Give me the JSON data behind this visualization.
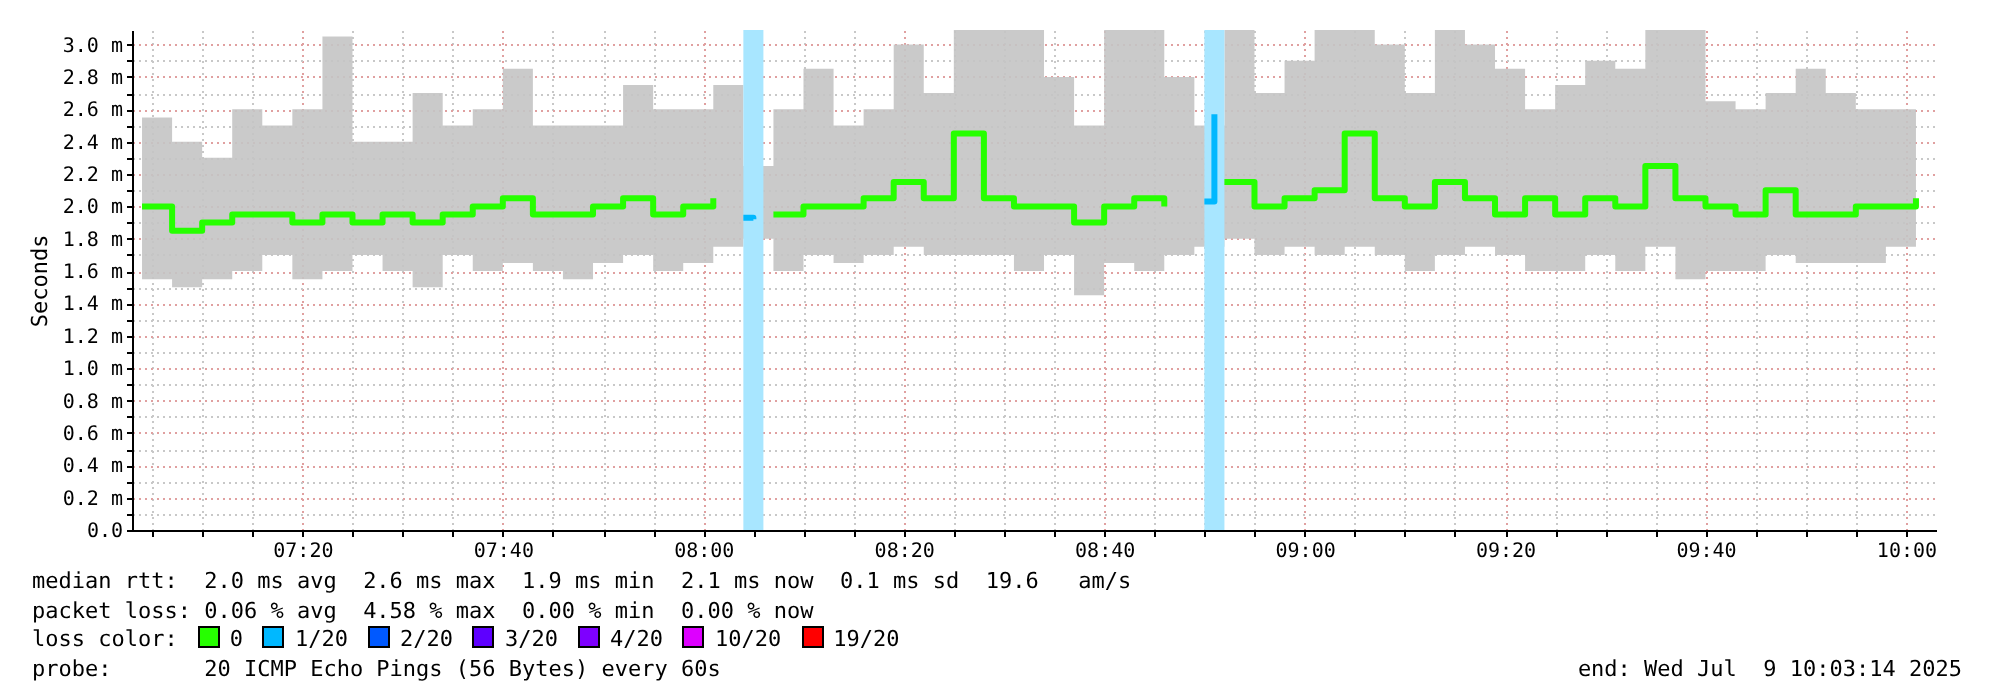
{
  "chart_data": {
    "type": "step",
    "ylabel": "Seconds",
    "legend_title": "loss color:",
    "legend": "bottom",
    "grid": true,
    "xlim": [
      "2025-07-09T07:03",
      "2025-07-09T10:03"
    ],
    "xticks": [
      {
        "value": "2025-07-09T07:05",
        "label": null
      },
      {
        "value": "2025-07-09T07:10",
        "label": null
      },
      {
        "value": "2025-07-09T07:15",
        "label": null
      },
      {
        "value": "2025-07-09T07:20",
        "label": "07:20"
      },
      {
        "value": "2025-07-09T07:25",
        "label": null
      },
      {
        "value": "2025-07-09T07:30",
        "label": null
      },
      {
        "value": "2025-07-09T07:35",
        "label": null
      },
      {
        "value": "2025-07-09T07:40",
        "label": "07:40"
      },
      {
        "value": "2025-07-09T07:45",
        "label": null
      },
      {
        "value": "2025-07-09T07:50",
        "label": null
      },
      {
        "value": "2025-07-09T07:55",
        "label": null
      },
      {
        "value": "2025-07-09T08:00",
        "label": "08:00"
      },
      {
        "value": "2025-07-09T08:05",
        "label": null
      },
      {
        "value": "2025-07-09T08:10",
        "label": null
      },
      {
        "value": "2025-07-09T08:15",
        "label": null
      },
      {
        "value": "2025-07-09T08:20",
        "label": "08:20"
      },
      {
        "value": "2025-07-09T08:25",
        "label": null
      },
      {
        "value": "2025-07-09T08:30",
        "label": null
      },
      {
        "value": "2025-07-09T08:35",
        "label": null
      },
      {
        "value": "2025-07-09T08:40",
        "label": "08:40"
      },
      {
        "value": "2025-07-09T08:45",
        "label": null
      },
      {
        "value": "2025-07-09T08:50",
        "label": null
      },
      {
        "value": "2025-07-09T08:55",
        "label": null
      },
      {
        "value": "2025-07-09T09:00",
        "label": "09:00"
      },
      {
        "value": "2025-07-09T09:05",
        "label": null
      },
      {
        "value": "2025-07-09T09:10",
        "label": null
      },
      {
        "value": "2025-07-09T09:15",
        "label": null
      },
      {
        "value": "2025-07-09T09:20",
        "label": "09:20"
      },
      {
        "value": "2025-07-09T09:25",
        "label": null
      },
      {
        "value": "2025-07-09T09:30",
        "label": null
      },
      {
        "value": "2025-07-09T09:35",
        "label": null
      },
      {
        "value": "2025-07-09T09:40",
        "label": "09:40"
      },
      {
        "value": "2025-07-09T09:45",
        "label": null
      },
      {
        "value": "2025-07-09T09:50",
        "label": null
      },
      {
        "value": "2025-07-09T09:55",
        "label": null
      },
      {
        "value": "2025-07-09T10:00",
        "label": "10:00"
      }
    ],
    "ylim": [
      0,
      3.09
    ],
    "yticks": [
      {
        "value": 0,
        "label": "0.0"
      },
      {
        "value": 0.1,
        "label": null
      },
      {
        "value": 0.2,
        "label": "0.2 m"
      },
      {
        "value": 0.3,
        "label": null
      },
      {
        "value": 0.4,
        "label": "0.4 m"
      },
      {
        "value": 0.5,
        "label": null
      },
      {
        "value": 0.6,
        "label": "0.6 m"
      },
      {
        "value": 0.7,
        "label": null
      },
      {
        "value": 0.8,
        "label": "0.8 m"
      },
      {
        "value": 0.9,
        "label": null
      },
      {
        "value": 1.0,
        "label": "1.0 m"
      },
      {
        "value": 1.1,
        "label": null
      },
      {
        "value": 1.2,
        "label": "1.2 m"
      },
      {
        "value": 1.3,
        "label": null
      },
      {
        "value": 1.4,
        "label": "1.4 m"
      },
      {
        "value": 1.5,
        "label": null
      },
      {
        "value": 1.6,
        "label": "1.6 m"
      },
      {
        "value": 1.7,
        "label": null
      },
      {
        "value": 1.8,
        "label": "1.8 m"
      },
      {
        "value": 1.9,
        "label": null
      },
      {
        "value": 2.0,
        "label": "2.0 m"
      },
      {
        "value": 2.1,
        "label": null
      },
      {
        "value": 2.2,
        "label": "2.2 m"
      },
      {
        "value": 2.3,
        "label": null
      },
      {
        "value": 2.4,
        "label": "2.4 m"
      },
      {
        "value": 2.5,
        "label": null
      },
      {
        "value": 2.6,
        "label": "2.6 m"
      },
      {
        "value": 2.7,
        "label": null
      },
      {
        "value": 2.8,
        "label": "2.8 m"
      },
      {
        "value": 2.9,
        "label": null
      },
      {
        "value": 3.0,
        "label": "3.0 m"
      }
    ],
    "x": [
      "2025-07-09T07:04",
      "2025-07-09T07:07",
      "2025-07-09T07:10",
      "2025-07-09T07:13",
      "2025-07-09T07:16",
      "2025-07-09T07:19",
      "2025-07-09T07:22",
      "2025-07-09T07:25",
      "2025-07-09T07:28",
      "2025-07-09T07:31",
      "2025-07-09T07:34",
      "2025-07-09T07:37",
      "2025-07-09T07:40",
      "2025-07-09T07:43",
      "2025-07-09T07:46",
      "2025-07-09T07:49",
      "2025-07-09T07:52",
      "2025-07-09T07:55",
      "2025-07-09T07:58",
      "2025-07-09T08:01",
      "2025-07-09T08:04",
      "2025-07-09T08:07",
      "2025-07-09T08:10",
      "2025-07-09T08:13",
      "2025-07-09T08:16",
      "2025-07-09T08:19",
      "2025-07-09T08:22",
      "2025-07-09T08:25",
      "2025-07-09T08:28",
      "2025-07-09T08:31",
      "2025-07-09T08:34",
      "2025-07-09T08:37",
      "2025-07-09T08:40",
      "2025-07-09T08:43",
      "2025-07-09T08:46",
      "2025-07-09T08:49",
      "2025-07-09T08:52",
      "2025-07-09T08:55",
      "2025-07-09T08:58",
      "2025-07-09T09:01",
      "2025-07-09T09:04",
      "2025-07-09T09:07",
      "2025-07-09T09:10",
      "2025-07-09T09:13",
      "2025-07-09T09:16",
      "2025-07-09T09:19",
      "2025-07-09T09:22",
      "2025-07-09T09:25",
      "2025-07-09T09:28",
      "2025-07-09T09:31",
      "2025-07-09T09:34",
      "2025-07-09T09:37",
      "2025-07-09T09:40",
      "2025-07-09T09:43",
      "2025-07-09T09:46",
      "2025-07-09T09:49",
      "2025-07-09T09:52",
      "2025-07-09T09:55",
      "2025-07-09T09:58",
      "2025-07-09T10:01"
    ],
    "series": [
      {
        "name": "0",
        "color": "#26ff00",
        "values": [
          2.0,
          1.85,
          1.9,
          1.95,
          1.95,
          1.9,
          1.95,
          1.9,
          1.95,
          1.9,
          1.95,
          2.0,
          2.05,
          1.95,
          1.95,
          2.0,
          2.05,
          1.95,
          2.0,
          2.05,
          null,
          1.95,
          2.0,
          2.0,
          2.05,
          2.15,
          2.05,
          2.45,
          2.05,
          2.0,
          2.0,
          1.9,
          2.0,
          2.05,
          2.0,
          null,
          2.15,
          2.0,
          2.05,
          2.1,
          2.45,
          2.05,
          2.0,
          2.15,
          2.05,
          1.95,
          2.05,
          1.95,
          2.05,
          2.0,
          2.25,
          2.05,
          2.0,
          1.95,
          2.1,
          1.95,
          1.95,
          2.0,
          2.0,
          2.05
        ],
        "lower": [
          1.55,
          1.5,
          1.55,
          1.6,
          1.7,
          1.55,
          1.6,
          1.7,
          1.6,
          1.5,
          1.7,
          1.6,
          1.65,
          1.6,
          1.55,
          1.65,
          1.7,
          1.6,
          1.65,
          1.75,
          1.8,
          1.6,
          1.7,
          1.65,
          1.7,
          1.75,
          1.7,
          1.7,
          1.7,
          1.6,
          1.7,
          1.45,
          1.65,
          1.6,
          1.7,
          1.75,
          1.8,
          1.7,
          1.75,
          1.7,
          1.75,
          1.7,
          1.6,
          1.7,
          1.75,
          1.7,
          1.6,
          1.6,
          1.7,
          1.6,
          1.75,
          1.55,
          1.6,
          1.6,
          1.7,
          1.65,
          1.65,
          1.65,
          1.75,
          1.8
        ],
        "upper": [
          2.55,
          2.4,
          2.3,
          2.6,
          2.5,
          2.6,
          3.05,
          2.4,
          2.4,
          2.7,
          2.5,
          2.6,
          2.85,
          2.5,
          2.5,
          2.5,
          2.75,
          2.6,
          2.6,
          2.75,
          2.25,
          2.6,
          2.85,
          2.5,
          2.6,
          3.0,
          2.7,
          3.09,
          3.09,
          3.09,
          2.8,
          2.5,
          3.09,
          3.09,
          2.8,
          2.5,
          3.09,
          2.7,
          2.9,
          3.09,
          3.09,
          3.0,
          2.7,
          3.09,
          3.0,
          2.85,
          2.6,
          2.75,
          2.9,
          2.85,
          3.09,
          3.09,
          2.65,
          2.6,
          2.7,
          2.85,
          2.7,
          2.6,
          2.6,
          2.25
        ]
      },
      {
        "name": "1/20",
        "color": "#00b8ff",
        "x": [
          "2025-07-09T08:04",
          "2025-07-09T08:05",
          "2025-07-09T08:06",
          "2025-07-09T08:50",
          "2025-07-09T08:51"
        ],
        "values": [
          1.93,
          1.92,
          null,
          2.03,
          2.57
        ]
      },
      {
        "name": "2/20",
        "color": "#0059ff",
        "values": [
          null,
          null,
          null,
          null,
          null,
          null,
          null,
          null,
          null,
          null,
          null,
          null,
          null,
          null,
          null,
          null,
          null,
          null,
          null,
          null,
          null,
          null,
          null,
          null,
          null,
          null,
          null,
          null,
          null,
          null,
          null,
          null,
          null,
          null,
          null,
          null,
          null,
          null,
          null,
          null,
          null,
          null,
          null,
          null,
          null,
          null,
          null,
          null,
          null,
          null,
          null,
          null,
          null,
          null,
          null,
          null,
          null,
          null,
          null,
          null
        ]
      },
      {
        "name": "3/20",
        "color": "#5e00ff",
        "values": [
          null,
          null,
          null,
          null,
          null,
          null,
          null,
          null,
          null,
          null,
          null,
          null,
          null,
          null,
          null,
          null,
          null,
          null,
          null,
          null,
          null,
          null,
          null,
          null,
          null,
          null,
          null,
          null,
          null,
          null,
          null,
          null,
          null,
          null,
          null,
          null,
          null,
          null,
          null,
          null,
          null,
          null,
          null,
          null,
          null,
          null,
          null,
          null,
          null,
          null,
          null,
          null,
          null,
          null,
          null,
          null,
          null,
          null,
          null,
          null
        ]
      },
      {
        "name": "4/20",
        "color": "#7e00ff",
        "values": [
          null,
          null,
          null,
          null,
          null,
          null,
          null,
          null,
          null,
          null,
          null,
          null,
          null,
          null,
          null,
          null,
          null,
          null,
          null,
          null,
          null,
          null,
          null,
          null,
          null,
          null,
          null,
          null,
          null,
          null,
          null,
          null,
          null,
          null,
          null,
          null,
          null,
          null,
          null,
          null,
          null,
          null,
          null,
          null,
          null,
          null,
          null,
          null,
          null,
          null,
          null,
          null,
          null,
          null,
          null,
          null,
          null,
          null,
          null,
          null
        ]
      },
      {
        "name": "10/20",
        "color": "#dd00ff",
        "values": [
          null,
          null,
          null,
          null,
          null,
          null,
          null,
          null,
          null,
          null,
          null,
          null,
          null,
          null,
          null,
          null,
          null,
          null,
          null,
          null,
          null,
          null,
          null,
          null,
          null,
          null,
          null,
          null,
          null,
          null,
          null,
          null,
          null,
          null,
          null,
          null,
          null,
          null,
          null,
          null,
          null,
          null,
          null,
          null,
          null,
          null,
          null,
          null,
          null,
          null,
          null,
          null,
          null,
          null,
          null,
          null,
          null,
          null,
          null,
          null
        ]
      },
      {
        "name": "19/20",
        "color": "#ff0000",
        "values": [
          null,
          null,
          null,
          null,
          null,
          null,
          null,
          null,
          null,
          null,
          null,
          null,
          null,
          null,
          null,
          null,
          null,
          null,
          null,
          null,
          null,
          null,
          null,
          null,
          null,
          null,
          null,
          null,
          null,
          null,
          null,
          null,
          null,
          null,
          null,
          null,
          null,
          null,
          null,
          null,
          null,
          null,
          null,
          null,
          null,
          null,
          null,
          null,
          null,
          null,
          null,
          null,
          null,
          null,
          null,
          null,
          null,
          null,
          null,
          null
        ]
      }
    ],
    "bands": [
      {
        "axis": "x",
        "from": "2025-07-09T08:04",
        "to": "2025-07-09T08:06",
        "color": "#a8e6ff"
      },
      {
        "axis": "x",
        "from": "2025-07-09T08:50",
        "to": "2025-07-09T08:52",
        "color": "#a8e6ff"
      }
    ],
    "annotations": [
      "median rtt:  2.0 ms avg  2.6 ms max  1.9 ms min  2.1 ms now  0.1 ms sd  19.6   am/s",
      "packet loss: 0.06 % avg  4.58 % max  0.00 % min  0.00 % now",
      "probe:       20 ICMP Echo Pings (56 Bytes) every 60s",
      "end: Wed Jul  9 10:03:14 2025"
    ]
  }
}
